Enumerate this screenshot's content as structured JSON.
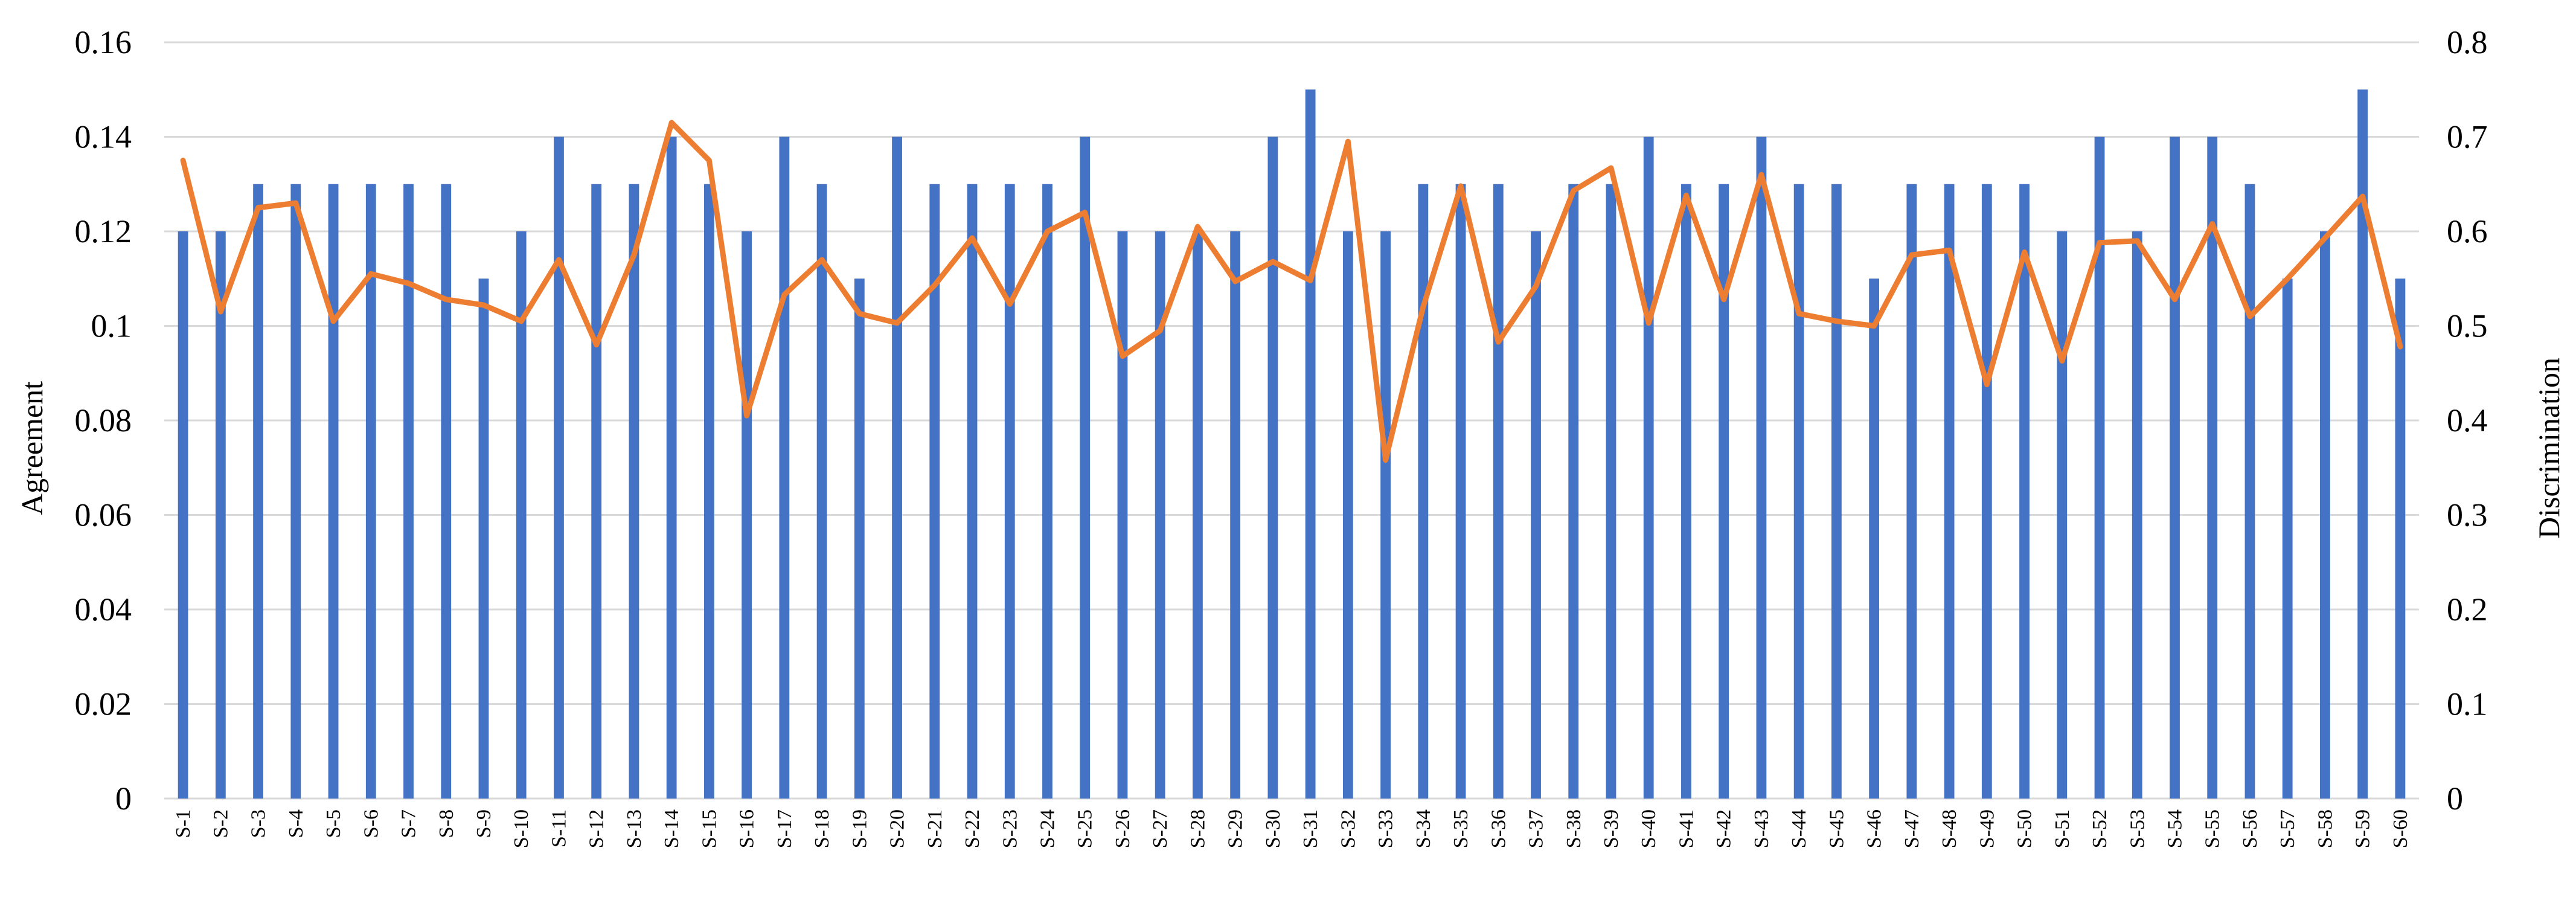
{
  "chart_data": {
    "type": "bar",
    "categories": [
      "S-1",
      "S-2",
      "S-3",
      "S-4",
      "S-5",
      "S-6",
      "S-7",
      "S-8",
      "S-9",
      "S-10",
      "S-11",
      "S-12",
      "S-13",
      "S-14",
      "S-15",
      "S-16",
      "S-17",
      "S-18",
      "S-19",
      "S-20",
      "S-21",
      "S-22",
      "S-23",
      "S-24",
      "S-25",
      "S-26",
      "S-27",
      "S-28",
      "S-29",
      "S-30",
      "S-31",
      "S-32",
      "S-33",
      "S-34",
      "S-35",
      "S-36",
      "S-37",
      "S-38",
      "S-39",
      "S-40",
      "S-41",
      "S-42",
      "S-43",
      "S-44",
      "S-45",
      "S-46",
      "S-47",
      "S-48",
      "S-49",
      "S-50",
      "S-51",
      "S-52",
      "S-53",
      "S-54",
      "S-55",
      "S-56",
      "S-57",
      "S-58",
      "S-59",
      "S-60"
    ],
    "series": [
      {
        "type": "bar",
        "axis": "left",
        "color": "#4472c4",
        "values": [
          0.12,
          0.12,
          0.13,
          0.13,
          0.13,
          0.13,
          0.13,
          0.13,
          0.11,
          0.12,
          0.14,
          0.13,
          0.13,
          0.14,
          0.13,
          0.12,
          0.14,
          0.13,
          0.11,
          0.14,
          0.13,
          0.13,
          0.13,
          0.13,
          0.14,
          0.12,
          0.12,
          0.12,
          0.12,
          0.14,
          0.15,
          0.12,
          0.12,
          0.13,
          0.13,
          0.13,
          0.12,
          0.13,
          0.13,
          0.14,
          0.13,
          0.13,
          0.14,
          0.13,
          0.13,
          0.11,
          0.13,
          0.13,
          0.13,
          0.13,
          0.12,
          0.14,
          0.12,
          0.14,
          0.14,
          0.13,
          0.11,
          0.12,
          0.15,
          0.11
        ]
      },
      {
        "type": "line",
        "axis": "right",
        "color": "#ed7d31",
        "values": [
          0.675,
          0.515,
          0.625,
          0.63,
          0.505,
          0.555,
          0.545,
          0.528,
          0.522,
          0.505,
          0.57,
          0.48,
          0.575,
          0.715,
          0.675,
          0.405,
          0.533,
          0.57,
          0.513,
          0.503,
          0.543,
          0.593,
          0.523,
          0.6,
          0.62,
          0.468,
          0.495,
          0.605,
          0.547,
          0.568,
          0.548,
          0.695,
          0.358,
          0.52,
          0.648,
          0.483,
          0.542,
          0.643,
          0.667,
          0.503,
          0.638,
          0.528,
          0.66,
          0.513,
          0.505,
          0.5,
          0.575,
          0.58,
          0.438,
          0.578,
          0.463,
          0.588,
          0.59,
          0.528,
          0.608,
          0.51,
          0.55,
          0.593,
          0.637,
          0.478
        ]
      }
    ],
    "y_left": {
      "label": "Agreement",
      "ylim": [
        0,
        0.16
      ],
      "ticks": [
        "0",
        "0.02",
        "0.04",
        "0.06",
        "0.08",
        "0.1",
        "0.12",
        "0.14",
        "0.16"
      ]
    },
    "y_right": {
      "label": "Discrimination",
      "ylim": [
        0,
        0.8
      ],
      "ticks": [
        "0",
        "0.1",
        "0.2",
        "0.3",
        "0.4",
        "0.5",
        "0.6",
        "0.7",
        "0.8"
      ]
    },
    "grid": true,
    "legend": "none"
  }
}
